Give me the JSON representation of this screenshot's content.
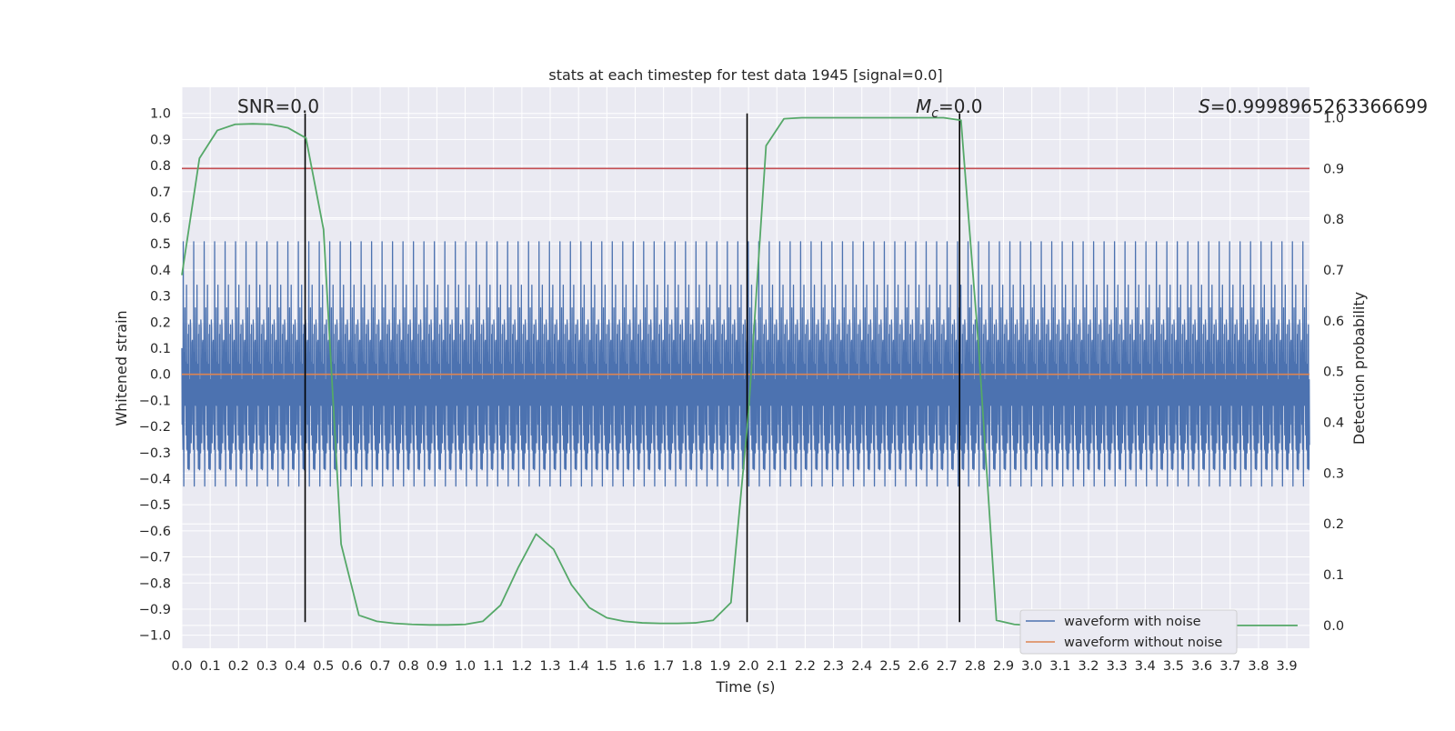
{
  "chart_data": {
    "type": "line",
    "title": "stats at each timestep for test data 1945 [signal=0.0]",
    "xlabel": "Time (s)",
    "ylabel": "Whitened strain",
    "y2label": "Detection probability",
    "xlim": [
      -0.0,
      3.98
    ],
    "ylim": [
      -1.05,
      1.1
    ],
    "y2lim": [
      -0.045,
      1.06
    ],
    "x_ticks": [
      "0.0",
      "0.1",
      "0.2",
      "0.3",
      "0.4",
      "0.5",
      "0.6",
      "0.7",
      "0.8",
      "0.9",
      "1.0",
      "1.1",
      "1.2",
      "1.3",
      "1.4",
      "1.5",
      "1.6",
      "1.7",
      "1.8",
      "1.9",
      "2.0",
      "2.1",
      "2.2",
      "2.3",
      "2.4",
      "2.5",
      "2.6",
      "2.7",
      "2.8",
      "2.9",
      "3.0",
      "3.1",
      "3.2",
      "3.3",
      "3.4",
      "3.5",
      "3.6",
      "3.7",
      "3.8",
      "3.9"
    ],
    "y_ticks": [
      "1.0",
      "0.9",
      "0.8",
      "0.7",
      "0.6",
      "0.5",
      "0.4",
      "0.3",
      "0.2",
      "0.1",
      "0.0",
      "−0.1",
      "−0.2",
      "−0.3",
      "−0.4",
      "−0.5",
      "−0.6",
      "−0.7",
      "−0.8",
      "−0.9",
      "−1.0"
    ],
    "y2_ticks": [
      "1.0",
      "0.9",
      "0.8",
      "0.7",
      "0.6",
      "0.5",
      "0.4",
      "0.3",
      "0.2",
      "0.1",
      "0.0"
    ],
    "grid": true,
    "legend_position": "lower-right",
    "legend": [
      "waveform with noise",
      "waveform without noise"
    ],
    "annotations": {
      "snr": "SNR=0.0",
      "mc_symbol": "M",
      "mc_sub": "c",
      "mc_value": "=0.0",
      "s_symbol": "S",
      "s_value": "=0.9998965263366699"
    },
    "colors": {
      "noise": "#4c72b0",
      "clean": "#dd8452",
      "probability": "#55a868",
      "threshold": "#c44e52",
      "markers": "#000000",
      "background": "#eaeaf2",
      "grid": "#ffffff"
    },
    "series": [
      {
        "name": "waveform with noise",
        "kind": "noise",
        "n_samples": 4096,
        "extent_estimate": [
          -0.95,
          1.0
        ]
      },
      {
        "name": "waveform without noise",
        "x": [
          0.0,
          3.98
        ],
        "y": [
          0.0,
          0.0
        ]
      },
      {
        "axis": "right",
        "x": [
          0.0,
          0.062,
          0.125,
          0.188,
          0.25,
          0.312,
          0.375,
          0.438,
          0.5,
          0.562,
          0.625,
          0.688,
          0.75,
          0.812,
          0.875,
          0.938,
          1.0,
          1.062,
          1.125,
          1.188,
          1.25,
          1.312,
          1.375,
          1.438,
          1.5,
          1.562,
          1.625,
          1.688,
          1.75,
          1.812,
          1.875,
          1.938,
          2.0,
          2.062,
          2.125,
          2.188,
          2.25,
          2.312,
          2.375,
          2.438,
          2.5,
          2.562,
          2.625,
          2.688,
          2.75,
          2.812,
          2.875,
          2.938,
          3.0,
          3.062,
          3.125,
          3.188,
          3.25,
          3.312,
          3.375,
          3.438,
          3.5,
          3.562,
          3.625,
          3.688,
          3.75,
          3.812,
          3.875,
          3.938
        ],
        "y": [
          0.69,
          0.92,
          0.975,
          0.987,
          0.988,
          0.987,
          0.98,
          0.96,
          0.78,
          0.16,
          0.02,
          0.008,
          0.004,
          0.002,
          0.001,
          0.001,
          0.002,
          0.008,
          0.04,
          0.115,
          0.18,
          0.15,
          0.08,
          0.035,
          0.015,
          0.008,
          0.005,
          0.004,
          0.004,
          0.005,
          0.01,
          0.045,
          0.42,
          0.945,
          0.998,
          1.0,
          1.0,
          1.0,
          1.0,
          1.0,
          1.0,
          1.0,
          1.0,
          1.0,
          0.995,
          0.55,
          0.01,
          0.002,
          0.0,
          0.0,
          0.0,
          0.0,
          0.0,
          0.0,
          0.0,
          0.0,
          0.0,
          0.0,
          0.0,
          0.0,
          0.0,
          0.0,
          0.0,
          0.0
        ]
      }
    ],
    "threshold": {
      "axis": "right",
      "y": 0.9
    },
    "vertical_markers": [
      0.435,
      1.995,
      2.745
    ],
    "marker_range": [
      -0.95,
      1.0
    ]
  }
}
